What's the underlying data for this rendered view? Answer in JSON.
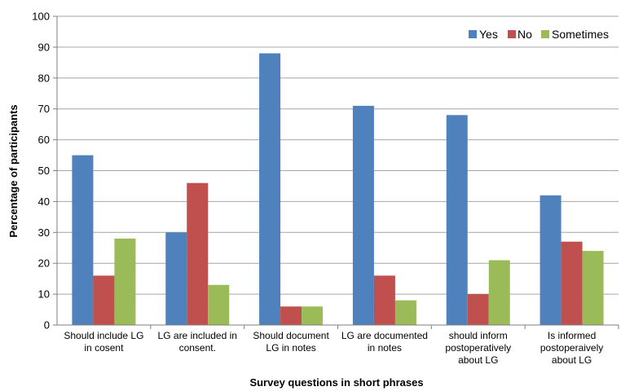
{
  "chart_data": {
    "type": "bar",
    "title": "",
    "xlabel": "Survey questions in short phrases",
    "ylabel": "Percentage of participants",
    "ylim": [
      0,
      100
    ],
    "yticks": [
      0,
      10,
      20,
      30,
      40,
      50,
      60,
      70,
      80,
      90,
      100
    ],
    "grid": true,
    "legend_position": "top-right",
    "categories": [
      [
        "Should include LG",
        "in cosent"
      ],
      [
        "LG are included in",
        "consent."
      ],
      [
        "Should document",
        "LG in notes"
      ],
      [
        "LG are documented",
        "in notes"
      ],
      [
        "should inform",
        "postoperatively",
        "about LG"
      ],
      [
        "Is informed",
        "postoperaively",
        "about LG"
      ]
    ],
    "series": [
      {
        "name": "Yes",
        "color": "#4F81BD",
        "values": [
          55,
          30,
          88,
          71,
          68,
          42
        ]
      },
      {
        "name": "No",
        "color": "#C0504D",
        "values": [
          16,
          46,
          6,
          16,
          10,
          27
        ]
      },
      {
        "name": "Sometimes",
        "color": "#9BBB59",
        "values": [
          28,
          13,
          6,
          8,
          21,
          24
        ]
      }
    ]
  }
}
